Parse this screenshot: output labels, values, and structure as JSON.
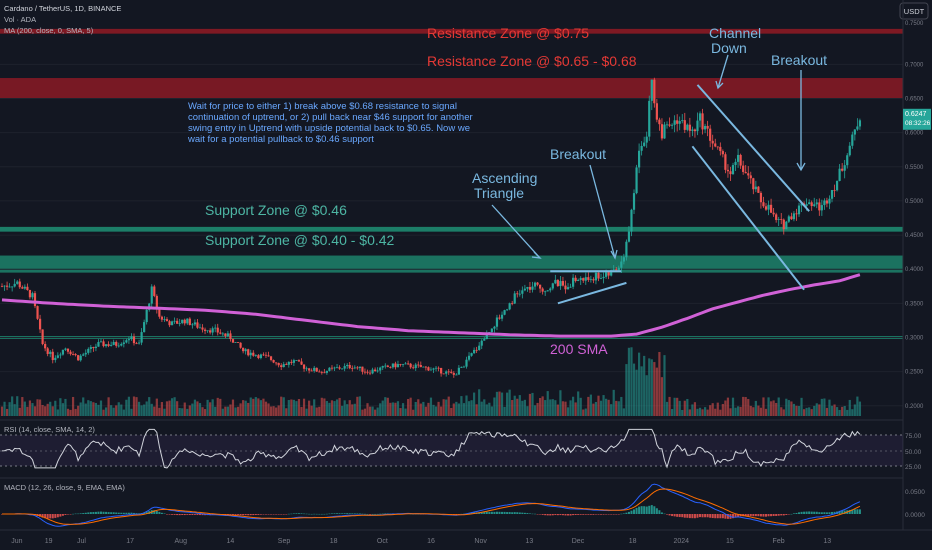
{
  "header": {
    "title": "Cardano / TetherUS, 1D, BINANCE",
    "vol_label": "Vol · ADA",
    "ma_label": "MA (200, close, 0, SMA, 5)",
    "currency_button": "USDT"
  },
  "colors": {
    "background": "#131722",
    "up": "#26a69a",
    "down": "#ef5350",
    "sma": "#d061d6",
    "resistance_fill": "#8b1a24",
    "support_fill": "#1e8a70",
    "annotation_red": "#e53935",
    "annotation_teal": "#4db6a4",
    "annotation_blue": "#7ab8e0",
    "note_blue": "#6aa8ff",
    "rsi_line": "#d1d4dc",
    "macd_line": "#2962ff",
    "signal_line": "#ff6d00",
    "price_tag": "#26a69a"
  },
  "annotations": {
    "resistance_075": "Resistance Zone @ $0.75",
    "resistance_065": "Resistance Zone @ $0.65 - $0.68",
    "channel_line1": "Channel",
    "channel_line2": "Down",
    "breakout_right": "Breakout",
    "breakout_mid": "Breakout",
    "triangle_line1": "Ascending",
    "triangle_line2": "Triangle",
    "support_046": "Support Zone @ $0.46",
    "support_040": "Support Zone @ $0.40 - $0.42",
    "sma_label": "200 SMA",
    "note_lines": [
      "Wait for price to either 1) break above $0.68 resistance to signal",
      "continuation of uptrend, or 2) pull back near $46 support for another",
      "swing entry in Uptrend with upside potential back to $0.65. Now we",
      "wait for a potential pullback to $0.46 support"
    ]
  },
  "rsi": {
    "label": "RSI (14, close, SMA, 14, 2)",
    "ticks": [
      "75.00",
      "50.00",
      "25.00"
    ]
  },
  "macd": {
    "label": "MACD (12, 26, close, 9, EMA, EMA)",
    "ticks": [
      "0.0500",
      "0.0000"
    ]
  },
  "price_axis": {
    "ticks": [
      "0.7000",
      "0.6500",
      "0.6000",
      "0.5500",
      "0.5000",
      "0.4500",
      "0.4000",
      "0.3500",
      "0.3000",
      "0.2500",
      "0.2000"
    ],
    "top_tick": "0.7500",
    "last_price": "0.6247",
    "countdown": "08:32:26"
  },
  "time_axis": {
    "labels": [
      "Jun",
      "19",
      "Jul",
      "17",
      "Aug",
      "14",
      "Sep",
      "18",
      "Oct",
      "16",
      "Nov",
      "13",
      "Dec",
      "18",
      "2024",
      "15",
      "Feb",
      "13"
    ]
  },
  "chart_data": {
    "type": "candlestick",
    "symbol": "Cardano / TetherUS, 1D, BINANCE",
    "ylim": [
      0.185,
      0.765
    ],
    "resistance_zones": [
      [
        0.745,
        0.752
      ],
      [
        0.65,
        0.68
      ]
    ],
    "support_zones": [
      [
        0.455,
        0.462
      ],
      [
        0.395,
        0.42
      ]
    ],
    "support_line_030": 0.3,
    "close_path": [
      [
        0,
        0.375
      ],
      [
        6,
        0.38
      ],
      [
        12,
        0.36
      ],
      [
        16,
        0.29
      ],
      [
        20,
        0.27
      ],
      [
        25,
        0.285
      ],
      [
        30,
        0.27
      ],
      [
        38,
        0.29
      ],
      [
        45,
        0.29
      ],
      [
        50,
        0.3
      ],
      [
        54,
        0.29
      ],
      [
        59,
        0.37
      ],
      [
        62,
        0.33
      ],
      [
        67,
        0.32
      ],
      [
        72,
        0.325
      ],
      [
        78,
        0.315
      ],
      [
        84,
        0.31
      ],
      [
        90,
        0.3
      ],
      [
        95,
        0.28
      ],
      [
        100,
        0.275
      ],
      [
        105,
        0.27
      ],
      [
        110,
        0.26
      ],
      [
        115,
        0.265
      ],
      [
        120,
        0.255
      ],
      [
        126,
        0.25
      ],
      [
        132,
        0.255
      ],
      [
        138,
        0.258
      ],
      [
        144,
        0.25
      ],
      [
        150,
        0.255
      ],
      [
        156,
        0.26
      ],
      [
        162,
        0.258
      ],
      [
        168,
        0.255
      ],
      [
        174,
        0.25
      ],
      [
        178,
        0.245
      ],
      [
        182,
        0.26
      ],
      [
        186,
        0.28
      ],
      [
        190,
        0.3
      ],
      [
        194,
        0.32
      ],
      [
        198,
        0.34
      ],
      [
        202,
        0.36
      ],
      [
        206,
        0.37
      ],
      [
        210,
        0.375
      ],
      [
        214,
        0.37
      ],
      [
        218,
        0.38
      ],
      [
        222,
        0.375
      ],
      [
        226,
        0.385
      ],
      [
        230,
        0.385
      ],
      [
        234,
        0.39
      ],
      [
        238,
        0.39
      ],
      [
        242,
        0.4
      ],
      [
        245,
        0.42
      ],
      [
        248,
        0.48
      ],
      [
        251,
        0.58
      ],
      [
        254,
        0.6
      ],
      [
        256,
        0.68
      ],
      [
        258,
        0.62
      ],
      [
        260,
        0.6
      ],
      [
        263,
        0.61
      ],
      [
        266,
        0.62
      ],
      [
        269,
        0.61
      ],
      [
        272,
        0.6
      ],
      [
        275,
        0.62
      ],
      [
        278,
        0.6
      ],
      [
        281,
        0.58
      ],
      [
        284,
        0.56
      ],
      [
        287,
        0.54
      ],
      [
        290,
        0.56
      ],
      [
        293,
        0.54
      ],
      [
        296,
        0.52
      ],
      [
        299,
        0.5
      ],
      [
        302,
        0.49
      ],
      [
        305,
        0.47
      ],
      [
        308,
        0.465
      ],
      [
        311,
        0.48
      ],
      [
        314,
        0.49
      ],
      [
        317,
        0.5
      ],
      [
        320,
        0.495
      ],
      [
        323,
        0.49
      ],
      [
        326,
        0.51
      ],
      [
        329,
        0.53
      ],
      [
        332,
        0.56
      ],
      [
        335,
        0.59
      ],
      [
        338,
        0.625
      ]
    ],
    "sma_200": [
      [
        0,
        0.355
      ],
      [
        20,
        0.35
      ],
      [
        40,
        0.346
      ],
      [
        60,
        0.343
      ],
      [
        80,
        0.34
      ],
      [
        100,
        0.334
      ],
      [
        120,
        0.325
      ],
      [
        140,
        0.316
      ],
      [
        160,
        0.31
      ],
      [
        180,
        0.307
      ],
      [
        200,
        0.304
      ],
      [
        220,
        0.302
      ],
      [
        240,
        0.302
      ],
      [
        250,
        0.305
      ],
      [
        260,
        0.315
      ],
      [
        270,
        0.328
      ],
      [
        280,
        0.342
      ],
      [
        290,
        0.352
      ],
      [
        300,
        0.362
      ],
      [
        310,
        0.37
      ],
      [
        320,
        0.377
      ],
      [
        330,
        0.383
      ],
      [
        338,
        0.392
      ]
    ],
    "patterns": {
      "ascending_triangle": {
        "top": 0.397,
        "bottom_start": 0.35,
        "bottom_end": 0.38
      },
      "channel_down": {
        "upper_start": 0.67,
        "upper_end": 0.485,
        "lower_start": 0.58,
        "lower_end": 0.37
      }
    }
  }
}
